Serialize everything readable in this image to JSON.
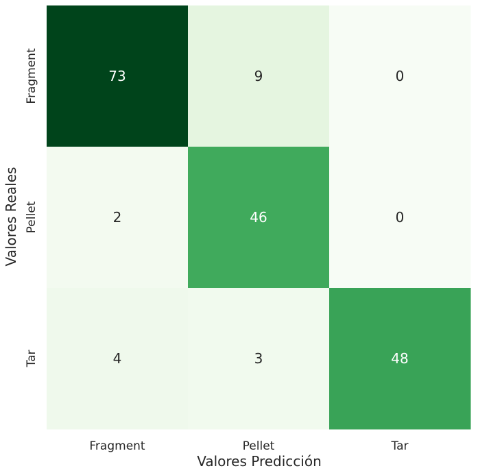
{
  "chart_data": {
    "type": "heatmap",
    "title": "",
    "xlabel": "Valores Predicción",
    "ylabel": "Valores Reales",
    "x_categories": [
      "Fragment",
      "Pellet",
      "Tar"
    ],
    "y_categories": [
      "Fragment",
      "Pellet",
      "Tar"
    ],
    "values": [
      [
        73,
        9,
        0
      ],
      [
        2,
        46,
        0
      ],
      [
        4,
        3,
        48
      ]
    ],
    "colormap": "Greens",
    "colorbar": false,
    "grid": false,
    "annotated": true
  }
}
